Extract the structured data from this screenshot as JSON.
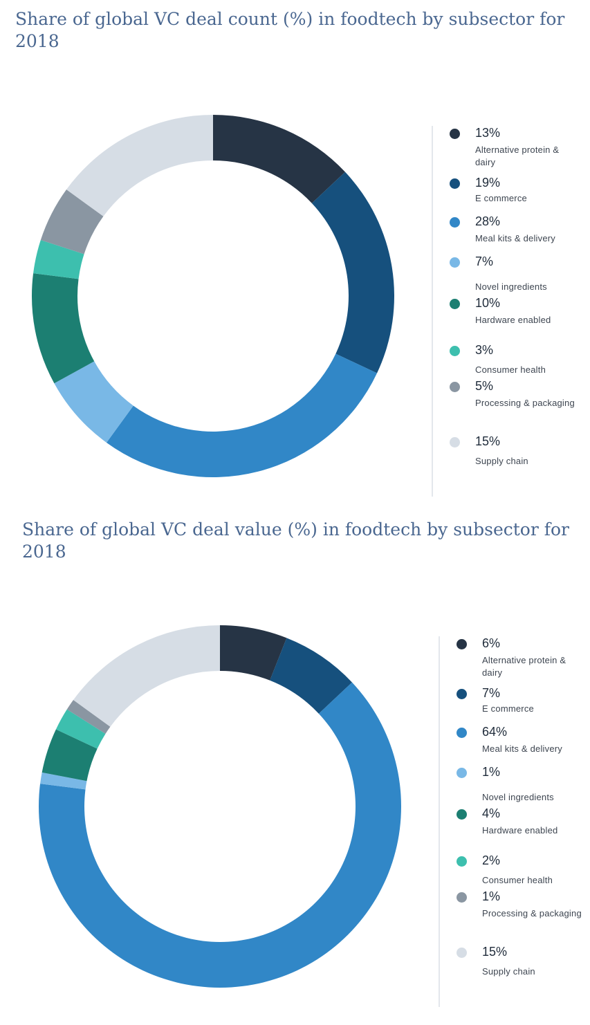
{
  "chart_data": [
    {
      "type": "pie",
      "title": "Share of global VC deal count (%) in foodtech by subsector for 2018",
      "categories": [
        "Alternative protein & dairy",
        "E commerce",
        "Meal kits & delivery",
        "Novel ingredients",
        "Hardware enabled",
        "Consumer health",
        "Processing & packaging",
        "Supply chain"
      ],
      "values": [
        13,
        19,
        28,
        7,
        10,
        3,
        5,
        15
      ],
      "value_labels": [
        "13%",
        "19%",
        "28%",
        "7%",
        "10%",
        "3%",
        "5%",
        "15%"
      ],
      "colors": [
        "#263445",
        "#16507d",
        "#3187c7",
        "#79b8e6",
        "#1c7f72",
        "#3dbfae",
        "#8a96a2",
        "#d6dde5"
      ],
      "legend": "right"
    },
    {
      "type": "pie",
      "title": "Share of global VC deal value (%) in foodtech by subsector for 2018",
      "categories": [
        "Alternative protein & dairy",
        "E commerce",
        "Meal kits & delivery",
        "Novel ingredients",
        "Hardware enabled",
        "Consumer health",
        "Processing & packaging",
        "Supply chain"
      ],
      "values": [
        6,
        7,
        64,
        1,
        4,
        2,
        1,
        15
      ],
      "value_labels": [
        "6%",
        "7%",
        "64%",
        "1%",
        "4%",
        "2%",
        "1%",
        "15%"
      ],
      "colors": [
        "#263445",
        "#16507d",
        "#3187c7",
        "#79b8e6",
        "#1c7f72",
        "#3dbfae",
        "#8a96a2",
        "#d6dde5"
      ],
      "legend": "right"
    }
  ]
}
